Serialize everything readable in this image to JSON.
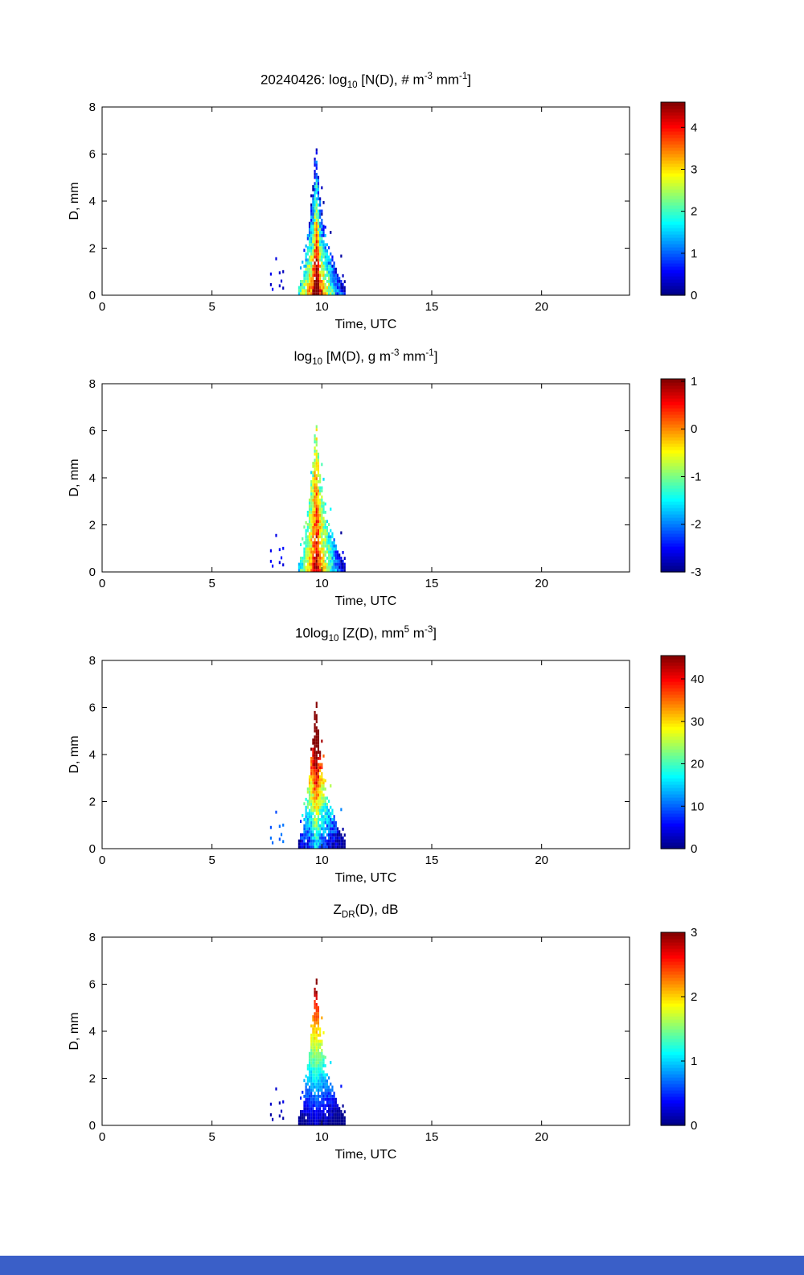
{
  "page": {
    "background": "#ffffff"
  },
  "bottom_bar": {
    "color": "#3a5fc8"
  },
  "chart_data": {
    "type": "heatmap",
    "date": "20240426",
    "x": {
      "label": "Time, UTC",
      "range": [
        0,
        24
      ],
      "ticks": [
        0,
        5,
        10,
        15,
        20
      ]
    },
    "y": {
      "label": "D, mm",
      "range": [
        0,
        8
      ],
      "ticks": [
        0,
        2,
        4,
        6,
        8
      ]
    },
    "grid": {
      "t0": 8.96,
      "t1": 11.08,
      "dt": 0.08,
      "dd": 0.13,
      "tc": 9.75
    },
    "seed": 1337,
    "envelope": [
      [
        8.96,
        0.35
      ],
      [
        9.04,
        0.6
      ],
      [
        9.12,
        0.85
      ],
      [
        9.2,
        1.25
      ],
      [
        9.28,
        1.8
      ],
      [
        9.36,
        2.6
      ],
      [
        9.44,
        3.4
      ],
      [
        9.52,
        4.3
      ],
      [
        9.6,
        5.1
      ],
      [
        9.68,
        6.0
      ],
      [
        9.73,
        6.75
      ],
      [
        9.78,
        5.8
      ],
      [
        9.84,
        5.1
      ],
      [
        9.92,
        4.3
      ],
      [
        10.0,
        3.6
      ],
      [
        10.08,
        3.1
      ],
      [
        10.16,
        2.7
      ],
      [
        10.28,
        2.3
      ],
      [
        10.4,
        1.9
      ],
      [
        10.52,
        1.55
      ],
      [
        10.64,
        1.25
      ],
      [
        10.76,
        1.0
      ],
      [
        10.88,
        0.7
      ],
      [
        11.0,
        0.5
      ],
      [
        11.08,
        0.35
      ]
    ],
    "outliers": [
      [
        7.68,
        0.9
      ],
      [
        7.68,
        0.45
      ],
      [
        7.76,
        0.25
      ],
      [
        7.92,
        1.55
      ],
      [
        8.08,
        0.95
      ],
      [
        8.08,
        0.4
      ],
      [
        8.16,
        0.6
      ],
      [
        8.24,
        0.3
      ],
      [
        8.24,
        1.0
      ]
    ],
    "panels": [
      {
        "title_segments": [
          {
            "t": "20240426: log"
          },
          {
            "t": "10",
            "sub": true
          },
          {
            "t": " [N(D), # m"
          },
          {
            "t": "-3",
            "sup": true
          },
          {
            "t": " mm"
          },
          {
            "t": "-1",
            "sup": true
          },
          {
            "t": "]"
          }
        ],
        "colorbar": {
          "range": [
            0,
            4.6
          ],
          "ticks": [
            0,
            1,
            2,
            3,
            4
          ]
        },
        "field": {
          "v0": 4.4,
          "kd": -0.85,
          "kt": 3.2,
          "cb": 1.2,
          "jit": 0.6,
          "clampMin": 0.15,
          "outlierValue": 0.45
        }
      },
      {
        "title_segments": [
          {
            "t": "log"
          },
          {
            "t": "10",
            "sub": true
          },
          {
            "t": " [M(D), g m"
          },
          {
            "t": "-3",
            "sup": true
          },
          {
            "t": " mm"
          },
          {
            "t": "-1",
            "sup": true
          },
          {
            "t": "]"
          }
        ],
        "colorbar": {
          "range": [
            -3,
            1.05
          ],
          "ticks": [
            -3,
            -2,
            -1,
            0,
            1
          ]
        },
        "field": {
          "v0": 0.5,
          "kd": -0.28,
          "kt": 2.6,
          "cb": 0.5,
          "jit": 0.45,
          "clampMin": -2.9,
          "outlierValue": -2.55
        }
      },
      {
        "title_segments": [
          {
            "t": "10log"
          },
          {
            "t": "10",
            "sub": true
          },
          {
            "t": " [Z(D),  mm"
          },
          {
            "t": "5",
            "sup": true
          },
          {
            "t": " m"
          },
          {
            "t": "-3",
            "sup": true
          },
          {
            "t": "]"
          }
        ],
        "colorbar": {
          "range": [
            0,
            45.5
          ],
          "ticks": [
            0,
            10,
            20,
            30,
            40
          ]
        },
        "field": {
          "v0": 10,
          "kd": 8.0,
          "kt": 11,
          "cb": 6,
          "jit": 4.5,
          "clampMin": 1,
          "outlierValue": 10
        }
      },
      {
        "title_segments": [
          {
            "t": "Z"
          },
          {
            "t": "DR",
            "sub": true
          },
          {
            "t": "(D), dB"
          }
        ],
        "colorbar": {
          "range": [
            0,
            3
          ],
          "ticks": [
            0,
            1,
            2,
            3
          ]
        },
        "field": {
          "v0": 0.1,
          "kd": 0.47,
          "kt": 0.28,
          "cb": 0.1,
          "jit": 0.14,
          "clampMin": 0.04,
          "outlierValue": 0.2
        }
      }
    ]
  }
}
